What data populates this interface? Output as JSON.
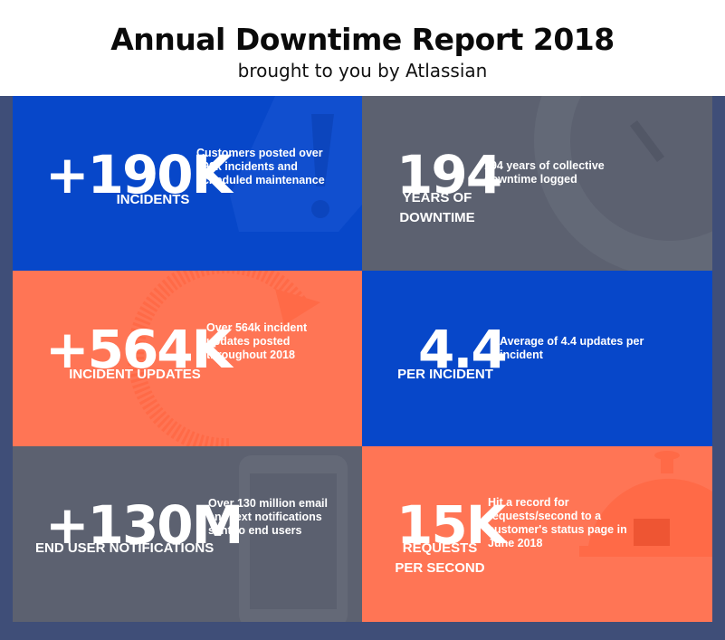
{
  "header": {
    "title": "Annual Downtime Report 2018",
    "subtitle": "brought to you by Atlassian"
  },
  "colors": {
    "background": "#3f4e78",
    "blue": "#0747c9",
    "gray": "#5c6170",
    "orange": "#ff7555"
  },
  "tiles": [
    {
      "id": "incidents",
      "color": "blue",
      "value": "+190K",
      "label": "INCIDENTS",
      "description": "Customers posted over 190k incidents and scheduled maintenance",
      "icon": "warning-icon"
    },
    {
      "id": "downtime",
      "color": "gray",
      "value": "194",
      "label_line1": "YEARS OF",
      "label_line2": "DOWNTIME",
      "description": "194 years of collective downtime logged",
      "icon": "clock-icon"
    },
    {
      "id": "updates",
      "color": "orange",
      "value": "+564K",
      "label": "INCIDENT UPDATES",
      "description": "Over 564k incident updates posted throughout 2018",
      "icon": "refresh-arrow-icon"
    },
    {
      "id": "per-incident",
      "color": "blue",
      "value": "4.4",
      "label": "PER INCIDENT",
      "description": "Average of 4.4 updates per incident"
    },
    {
      "id": "notifications",
      "color": "gray",
      "value": "+130M",
      "label": "END USER NOTIFICATIONS",
      "description": "Over 130 million email and text notifications sent to end users",
      "icon": "phone-icon"
    },
    {
      "id": "requests",
      "color": "orange",
      "value": "15K",
      "label_line1": "REQUESTS",
      "label_line2": "PER SECOND",
      "description": "Hit a record for requests/second to a customer's status page in June 2018",
      "icon": "service-bell-icon"
    }
  ]
}
